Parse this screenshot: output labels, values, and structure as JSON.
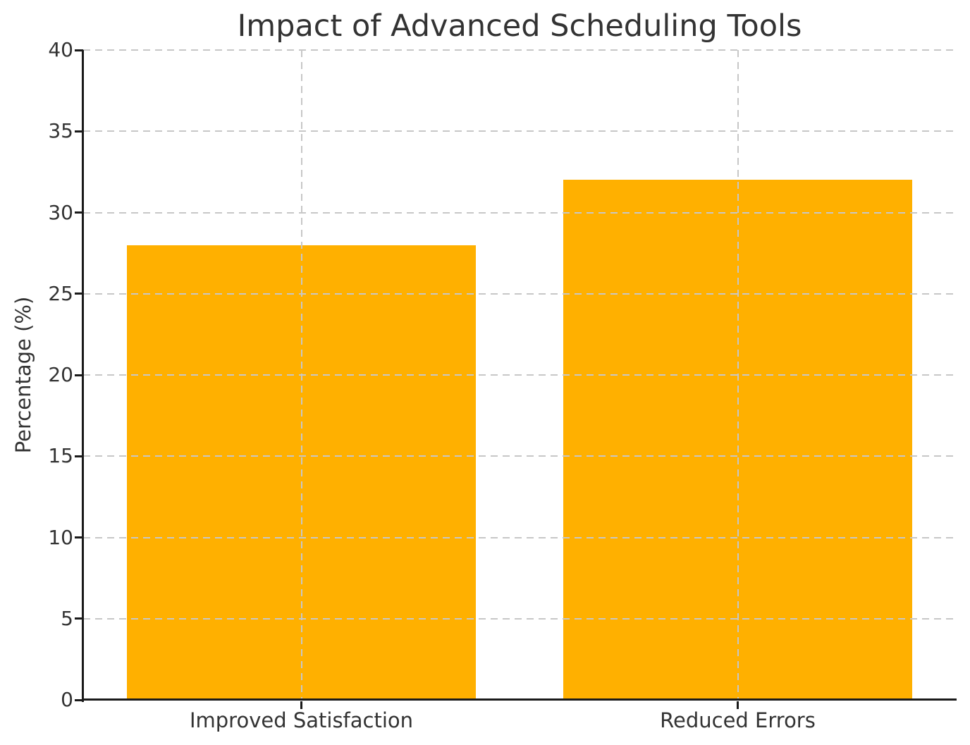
{
  "figure": {
    "background": "#ffffff"
  },
  "chart_data": {
    "type": "bar",
    "title": "Impact of Advanced Scheduling Tools",
    "xlabel": "",
    "ylabel": "Percentage (%)",
    "categories": [
      "Improved Satisfaction",
      "Reduced Errors"
    ],
    "values": [
      28,
      32
    ],
    "ylim": [
      0,
      40
    ],
    "yticks": [
      0,
      5,
      10,
      15,
      20,
      25,
      30,
      35,
      40
    ],
    "bar_color": "#FFB000",
    "bar_width_fraction": 0.8,
    "grid": {
      "visible": true,
      "style": "dashed",
      "color": "#c7c7c7",
      "orientation": "both",
      "drawn_over_bars": true
    },
    "legend": "none",
    "axis_color": "#1a1a1a",
    "text_color": "#333333"
  }
}
